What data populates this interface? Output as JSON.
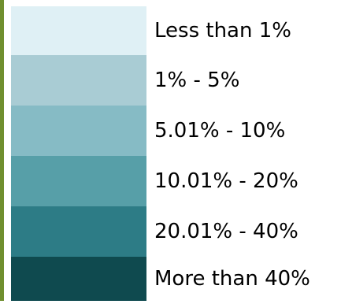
{
  "chart_data": {
    "type": "table",
    "title": "",
    "legend_entries": [
      {
        "label": "Less than 1%",
        "color": "#dff0f5"
      },
      {
        "label": "1% - 5%",
        "color": "#a9ccd4"
      },
      {
        "label": "5.01% - 10%",
        "color": "#86bbc5"
      },
      {
        "label": "10.01% - 20%",
        "color": "#579fa8"
      },
      {
        "label": "20.01% - 40%",
        "color": "#2d7c86"
      },
      {
        "label": "More than 40%",
        "color": "#0f4a4f"
      }
    ]
  }
}
